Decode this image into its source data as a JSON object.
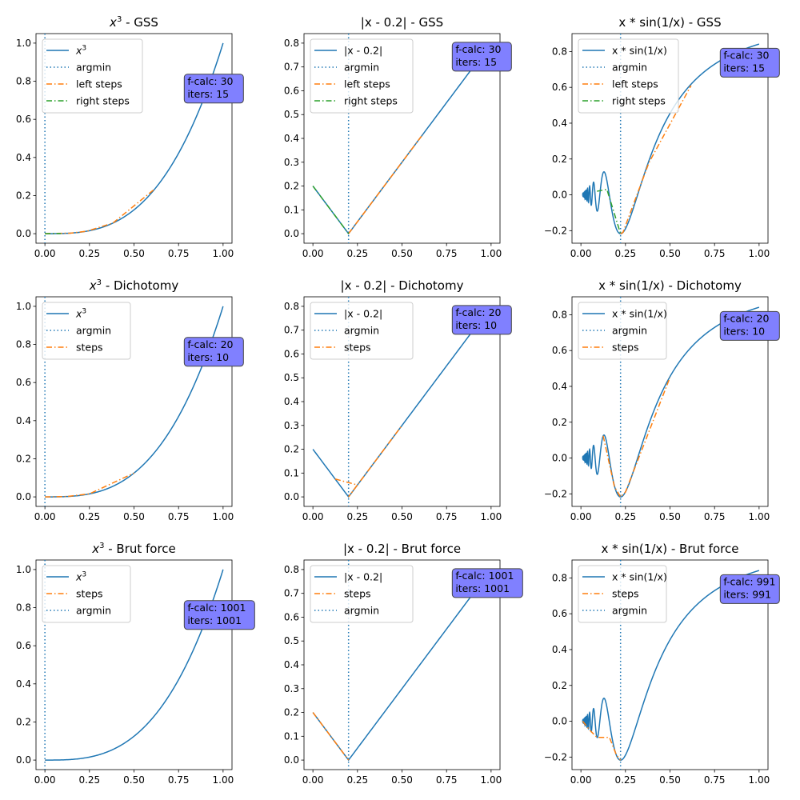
{
  "colors": {
    "function": "#1f77b4",
    "steps": "#ff7f0e",
    "right_steps": "#2ca02c",
    "argmin": "#1f77b4",
    "info_box": "#8080ff"
  },
  "chart_data": [
    {
      "type": "line",
      "func": "cube",
      "title": {
        "base": "x",
        "sup": "3",
        "suffix": " - GSS"
      },
      "xlim": [
        0,
        1
      ],
      "ylim": [
        0,
        1.0
      ],
      "xticks": [
        "0.00",
        "0.25",
        "0.50",
        "0.75",
        "1.00"
      ],
      "yticks": [
        "0.0",
        "0.2",
        "0.4",
        "0.6",
        "0.8",
        "1.0"
      ],
      "argmin": 0.0,
      "legend": [
        {
          "label": "x",
          "sup": "3",
          "style": "solid"
        },
        {
          "label": "argmin",
          "style": "dotted"
        },
        {
          "label": "left steps",
          "style": "dashdot"
        },
        {
          "label": "right steps",
          "style": "dashdot-green"
        }
      ],
      "info": {
        "fcalc": "f-calc: 30",
        "iters": "iters: 15"
      },
      "steps": [
        [
          0.0,
          0.0
        ],
        [
          0.146,
          0.003
        ],
        [
          0.236,
          0.013
        ],
        [
          0.382,
          0.056
        ],
        [
          0.618,
          0.236
        ]
      ],
      "right_steps": [
        [
          0.0,
          0.0
        ],
        [
          0.09,
          0.001
        ]
      ]
    },
    {
      "type": "line",
      "func": "abs",
      "title": {
        "base": "|x - 0.2| - GSS"
      },
      "xlim": [
        0,
        1
      ],
      "ylim": [
        0,
        0.8
      ],
      "xticks": [
        "0.00",
        "0.25",
        "0.50",
        "0.75",
        "1.00"
      ],
      "yticks": [
        "0.0",
        "0.1",
        "0.2",
        "0.3",
        "0.4",
        "0.5",
        "0.6",
        "0.7",
        "0.8"
      ],
      "argmin": 0.2,
      "legend": [
        {
          "label": "|x - 0.2|",
          "style": "solid"
        },
        {
          "label": "argmin",
          "style": "dotted"
        },
        {
          "label": "left steps",
          "style": "dashdot"
        },
        {
          "label": "right steps",
          "style": "dashdot-green"
        }
      ],
      "info": {
        "fcalc": "f-calc: 30",
        "iters: 15": "",
        "iters": "iters: 15"
      },
      "steps": [
        [
          0.2,
          0.0
        ],
        [
          0.382,
          0.182
        ],
        [
          0.618,
          0.418
        ]
      ],
      "right_steps": [
        [
          0.0,
          0.2
        ],
        [
          0.1,
          0.1
        ],
        [
          0.2,
          0.0
        ]
      ]
    },
    {
      "type": "line",
      "func": "xsin",
      "title": {
        "base": "x * sin(1/x) - GSS"
      },
      "xlim": [
        0,
        1
      ],
      "ylim": [
        -0.25,
        0.85
      ],
      "xticks": [
        "0.00",
        "0.25",
        "0.50",
        "0.75",
        "1.00"
      ],
      "yticks": [
        "−0.2",
        "0.0",
        "0.2",
        "0.4",
        "0.6",
        "0.8"
      ],
      "yvals": [
        -0.2,
        0.0,
        0.2,
        0.4,
        0.6,
        0.8
      ],
      "argmin": 0.2225,
      "legend": [
        {
          "label": "x * sin(1/x)",
          "style": "solid"
        },
        {
          "label": "argmin",
          "style": "dotted"
        },
        {
          "label": "left steps",
          "style": "dashdot"
        },
        {
          "label": "right steps",
          "style": "dashdot-green"
        }
      ],
      "info": {
        "fcalc": "f-calc: 30",
        "iters": "iters: 15"
      },
      "steps": [
        [
          0.2225,
          -0.2172
        ],
        [
          0.236,
          -0.21
        ],
        [
          0.382,
          0.18
        ],
        [
          0.618,
          0.61
        ]
      ],
      "right_steps": [
        [
          0.09,
          0.02
        ],
        [
          0.146,
          0.03
        ],
        [
          0.2225,
          -0.2172
        ]
      ]
    },
    {
      "type": "line",
      "func": "cube",
      "title": {
        "base": "x",
        "sup": "3",
        "suffix": " - Dichotomy"
      },
      "xlim": [
        0,
        1
      ],
      "ylim": [
        0,
        1.0
      ],
      "xticks": [
        "0.00",
        "0.25",
        "0.50",
        "0.75",
        "1.00"
      ],
      "yticks": [
        "0.0",
        "0.2",
        "0.4",
        "0.6",
        "0.8",
        "1.0"
      ],
      "argmin": 0.0,
      "legend": [
        {
          "label": "x",
          "sup": "3",
          "style": "solid"
        },
        {
          "label": "argmin",
          "style": "dotted"
        },
        {
          "label": "steps",
          "style": "dashdot"
        }
      ],
      "info": {
        "fcalc": "f-calc: 20",
        "iters": "iters: 10"
      },
      "steps": [
        [
          0.0,
          0.0
        ],
        [
          0.125,
          0.002
        ],
        [
          0.25,
          0.016
        ],
        [
          0.5,
          0.125
        ]
      ]
    },
    {
      "type": "line",
      "func": "abs",
      "title": {
        "base": "|x - 0.2| - Dichotomy"
      },
      "xlim": [
        0,
        1
      ],
      "ylim": [
        0,
        0.8
      ],
      "xticks": [
        "0.00",
        "0.25",
        "0.50",
        "0.75",
        "1.00"
      ],
      "yticks": [
        "0.0",
        "0.1",
        "0.2",
        "0.3",
        "0.4",
        "0.5",
        "0.6",
        "0.7",
        "0.8"
      ],
      "argmin": 0.2,
      "legend": [
        {
          "label": "|x - 0.2|",
          "style": "solid"
        },
        {
          "label": "argmin",
          "style": "dotted"
        },
        {
          "label": "steps",
          "style": "dashdot"
        }
      ],
      "info": {
        "fcalc": "f-calc: 20",
        "iters": "iters: 10"
      },
      "steps": [
        [
          0.125,
          0.075
        ],
        [
          0.25,
          0.05
        ],
        [
          0.2,
          0.0
        ],
        [
          0.5,
          0.3
        ]
      ]
    },
    {
      "type": "line",
      "func": "xsin",
      "title": {
        "base": "x * sin(1/x) - Dichotomy"
      },
      "xlim": [
        0,
        1
      ],
      "ylim": [
        -0.25,
        0.85
      ],
      "xticks": [
        "0.00",
        "0.25",
        "0.50",
        "0.75",
        "1.00"
      ],
      "yticks": [
        "−0.2",
        "0.0",
        "0.2",
        "0.4",
        "0.6",
        "0.8"
      ],
      "yvals": [
        -0.2,
        0.0,
        0.2,
        0.4,
        0.6,
        0.8
      ],
      "argmin": 0.2225,
      "legend": [
        {
          "label": "x * sin(1/x)",
          "style": "solid"
        },
        {
          "label": "argmin",
          "style": "dotted"
        },
        {
          "label": "steps",
          "style": "dashdot"
        }
      ],
      "info": {
        "fcalc": "f-calc: 20",
        "iters": "iters: 10"
      },
      "steps": [
        [
          0.125,
          0.124
        ],
        [
          0.188,
          -0.16
        ],
        [
          0.2225,
          -0.2172
        ],
        [
          0.25,
          -0.19
        ],
        [
          0.5,
          0.45
        ]
      ]
    },
    {
      "type": "line",
      "func": "cube",
      "title": {
        "base": "x",
        "sup": "3",
        "suffix": " - Brut force"
      },
      "xlim": [
        0,
        1
      ],
      "ylim": [
        0,
        1.0
      ],
      "xticks": [
        "0.00",
        "0.25",
        "0.50",
        "0.75",
        "1.00"
      ],
      "yticks": [
        "0.0",
        "0.2",
        "0.4",
        "0.6",
        "0.8",
        "1.0"
      ],
      "argmin": 0.0,
      "legend": [
        {
          "label": "x",
          "sup": "3",
          "style": "solid"
        },
        {
          "label": "steps",
          "style": "dashdot"
        },
        {
          "label": "argmin",
          "style": "dotted"
        }
      ],
      "info": {
        "fcalc": "f-calc: 1001",
        "iters": "iters: 1001"
      },
      "steps": [
        [
          0.0,
          0.0
        ],
        [
          0.001,
          0.0
        ]
      ]
    },
    {
      "type": "line",
      "func": "abs",
      "title": {
        "base": "|x - 0.2| - Brut force"
      },
      "xlim": [
        0,
        1
      ],
      "ylim": [
        0,
        0.8
      ],
      "xticks": [
        "0.00",
        "0.25",
        "0.50",
        "0.75",
        "1.00"
      ],
      "yticks": [
        "0.0",
        "0.1",
        "0.2",
        "0.3",
        "0.4",
        "0.5",
        "0.6",
        "0.7",
        "0.8"
      ],
      "argmin": 0.2,
      "legend": [
        {
          "label": "|x - 0.2|",
          "style": "solid"
        },
        {
          "label": "steps",
          "style": "dashdot"
        },
        {
          "label": "argmin",
          "style": "dotted"
        }
      ],
      "info": {
        "fcalc": "f-calc: 1001",
        "iters": "iters: 1001"
      },
      "steps": [
        [
          0.0,
          0.2
        ],
        [
          0.2,
          0.0
        ]
      ]
    },
    {
      "type": "line",
      "func": "xsin",
      "title": {
        "base": "x * sin(1/x) - Brut force"
      },
      "xlim": [
        0,
        1
      ],
      "ylim": [
        -0.25,
        0.85
      ],
      "xticks": [
        "0.00",
        "0.25",
        "0.50",
        "0.75",
        "1.00"
      ],
      "yticks": [
        "−0.2",
        "0.0",
        "0.2",
        "0.4",
        "0.6",
        "0.8"
      ],
      "yvals": [
        -0.2,
        0.0,
        0.2,
        0.4,
        0.6,
        0.8
      ],
      "argmin": 0.2225,
      "legend": [
        {
          "label": "x * sin(1/x)",
          "style": "solid"
        },
        {
          "label": "steps",
          "style": "dashdot"
        },
        {
          "label": "argmin",
          "style": "dotted"
        }
      ],
      "info": {
        "fcalc": "f-calc: 991",
        "iters": "iters: 991"
      },
      "steps": [
        [
          0.01,
          0.0
        ],
        [
          0.05,
          -0.05
        ],
        [
          0.09,
          -0.09
        ],
        [
          0.16,
          -0.09
        ],
        [
          0.2,
          -0.19
        ],
        [
          0.2225,
          -0.2172
        ]
      ]
    }
  ]
}
